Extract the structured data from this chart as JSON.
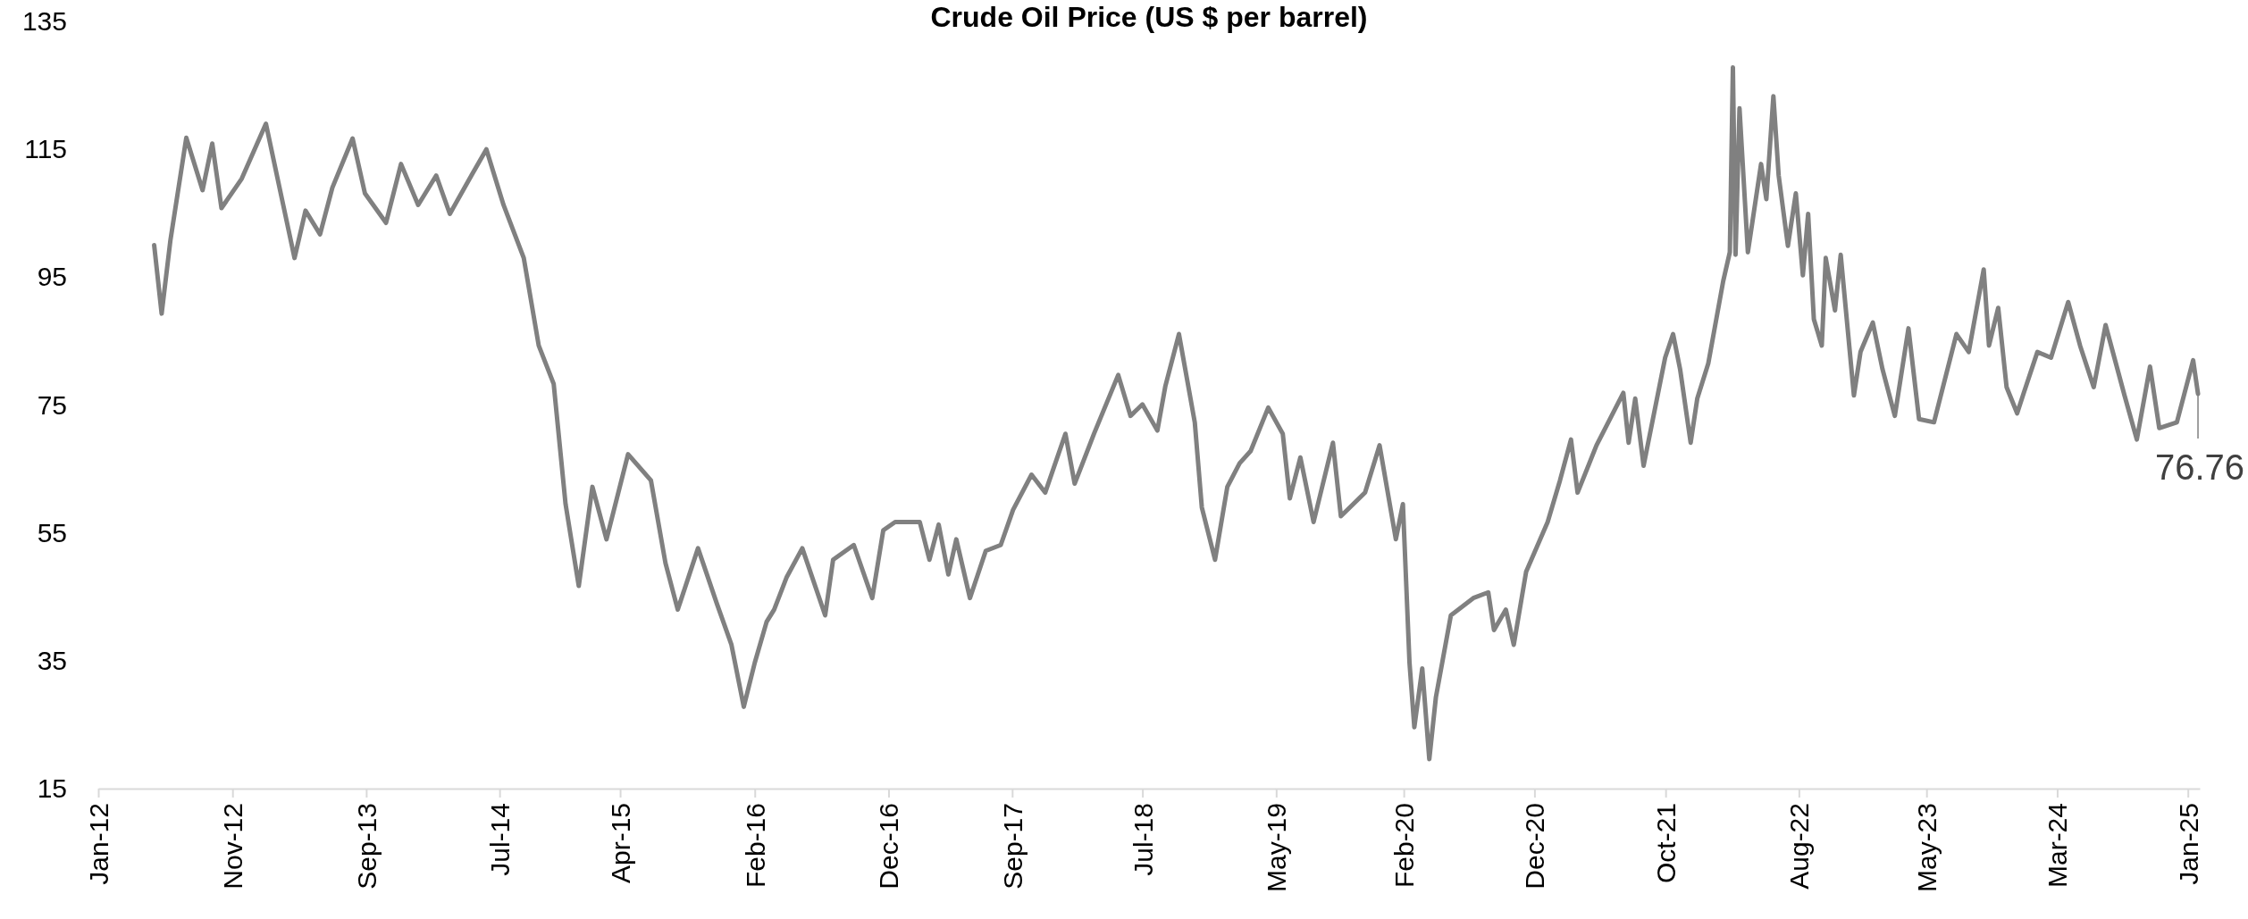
{
  "chart_data": {
    "type": "line",
    "title": "Crude Oil Price (US $ per barrel)",
    "x": [
      "2012-05-07",
      "2012-05-24",
      "2012-06-13",
      "2012-07-19",
      "2012-08-25",
      "2012-09-16",
      "2012-10-07",
      "2012-11-22",
      "2013-01-16",
      "2013-02-10",
      "2013-03-22",
      "2013-04-16",
      "2013-05-19",
      "2013-06-16",
      "2013-08-01",
      "2013-08-29",
      "2013-10-16",
      "2013-11-19",
      "2013-12-28",
      "2014-02-07",
      "2014-03-10",
      "2014-04-28",
      "2014-06-01",
      "2014-07-10",
      "2014-08-25",
      "2014-09-28",
      "2014-11-01",
      "2014-11-28",
      "2014-12-28",
      "2015-01-28",
      "2015-03-01",
      "2015-04-19",
      "2015-06-10",
      "2015-07-13",
      "2015-08-10",
      "2015-09-25",
      "2015-11-07",
      "2015-12-10",
      "2016-01-07",
      "2016-02-01",
      "2016-02-28",
      "2016-03-16",
      "2016-04-13",
      "2016-05-19",
      "2016-07-10",
      "2016-07-28",
      "2016-09-13",
      "2016-10-25",
      "2016-11-19",
      "2016-12-16",
      "2017-02-10",
      "2017-03-04",
      "2017-03-25",
      "2017-04-16",
      "2017-05-04",
      "2017-06-04",
      "2017-07-10",
      "2017-08-13",
      "2017-09-10",
      "2017-10-22",
      "2017-11-22",
      "2018-01-07",
      "2018-01-28",
      "2018-03-13",
      "2018-05-07",
      "2018-06-04",
      "2018-07-01",
      "2018-08-04",
      "2018-08-22",
      "2018-09-22",
      "2018-10-28",
      "2018-11-13",
      "2018-12-13",
      "2019-01-10",
      "2019-02-07",
      "2019-03-04",
      "2019-04-13",
      "2019-05-16",
      "2019-06-01",
      "2019-06-25",
      "2019-07-25",
      "2019-09-07",
      "2019-09-25",
      "2019-11-19",
      "2019-12-22",
      "2020-01-28",
      "2020-02-13",
      "2020-02-28",
      "2020-03-10",
      "2020-03-28",
      "2020-04-13",
      "2020-04-28",
      "2020-06-01",
      "2020-07-22",
      "2020-08-25",
      "2020-09-07",
      "2020-10-04",
      "2020-10-22",
      "2020-11-19",
      "2021-01-07",
      "2021-02-04",
      "2021-03-01",
      "2021-03-16",
      "2021-04-28",
      "2021-06-28",
      "2021-07-10",
      "2021-07-25",
      "2021-08-13",
      "2021-10-01",
      "2021-10-19",
      "2021-11-04",
      "2021-11-28",
      "2021-12-13",
      "2022-01-07",
      "2022-02-10",
      "2022-02-25",
      "2022-03-04",
      "2022-03-10",
      "2022-03-19",
      "2022-04-07",
      "2022-05-07",
      "2022-05-19",
      "2022-06-04",
      "2022-06-16",
      "2022-07-07",
      "2022-07-25",
      "2022-08-10",
      "2022-08-22",
      "2022-09-04",
      "2022-09-22",
      "2022-10-01",
      "2022-10-22",
      "2022-11-04",
      "2022-12-04",
      "2022-12-19",
      "2023-01-16",
      "2023-02-07",
      "2023-03-07",
      "2023-04-07",
      "2023-05-01",
      "2023-06-04",
      "2023-07-25",
      "2023-08-22",
      "2023-09-25",
      "2023-10-07",
      "2023-10-28",
      "2023-11-16",
      "2023-12-10",
      "2023-12-25",
      "2024-01-25",
      "2024-02-25",
      "2024-04-04",
      "2024-05-01",
      "2024-06-01",
      "2024-06-28",
      "2024-08-10",
      "2024-09-07",
      "2024-10-07",
      "2024-10-28",
      "2024-12-07",
      "2025-01-13",
      "2025-01-24"
    ],
    "series": [
      {
        "color": "#808080",
        "values": [
          100,
          89.3,
          100.8,
          116.8,
          108.6,
          115.9,
          105.8,
          110.4,
          119,
          110.9,
          98,
          105.4,
          101.7,
          109,
          116.7,
          108.1,
          103.5,
          112.7,
          106.3,
          110.9,
          104.9,
          110.9,
          115,
          106.3,
          98,
          84.3,
          78.3,
          59.5,
          46.7,
          62.2,
          54,
          67.3,
          63.2,
          50.3,
          43,
          52.6,
          43.9,
          37.5,
          27.8,
          34.7,
          41.1,
          43,
          48,
          52.6,
          42.1,
          50.8,
          53.1,
          44.8,
          55.4,
          56.7,
          56.7,
          50.8,
          56.3,
          48.5,
          54,
          44.8,
          52.2,
          53.1,
          58.6,
          64.1,
          61.3,
          70.5,
          62.7,
          70.5,
          79.7,
          73.3,
          75.1,
          71,
          77.9,
          86.1,
          72.3,
          59,
          50.8,
          62.2,
          65.9,
          67.8,
          74.6,
          70.5,
          60.4,
          66.8,
          56.7,
          69.1,
          57.6,
          61.3,
          68.7,
          54,
          59.5,
          34.7,
          24.6,
          33.8,
          19.6,
          29.3,
          42.1,
          44.8,
          45.7,
          39.8,
          43,
          37.5,
          48.9,
          56.7,
          63.2,
          69.6,
          61.3,
          68.7,
          76.9,
          69.1,
          76,
          65.5,
          82.4,
          86.1,
          80.6,
          69.1,
          76,
          81.5,
          94.4,
          98.9,
          127.8,
          98.5,
          121.4,
          98.9,
          112.7,
          107.2,
          123.3,
          110.9,
          99.9,
          108.1,
          95.3,
          104.9,
          88.4,
          84.3,
          98,
          89.8,
          98.5,
          76.5,
          83.3,
          87.9,
          80.6,
          73.3,
          87,
          72.8,
          72.3,
          86.1,
          83.3,
          96.2,
          84.3,
          90.2,
          77.8,
          73.7,
          76.9,
          83.3,
          82.4,
          91.1,
          84.3,
          77.8,
          87.5,
          76.5,
          69.6,
          81,
          71.4,
          72.3,
          82,
          76.76
        ]
      }
    ],
    "xlim": [
      "2012-01-01",
      "2025-01-28"
    ],
    "xticks": [
      {
        "value": "2012-01-01",
        "label": "Jan-12"
      },
      {
        "value": "2012-11-01",
        "label": "Nov-12"
      },
      {
        "value": "2013-09-01",
        "label": "Sep-13"
      },
      {
        "value": "2014-07-01",
        "label": "Jul-14"
      },
      {
        "value": "2015-04-01",
        "label": "Apr-15"
      },
      {
        "value": "2016-02-01",
        "label": "Feb-16"
      },
      {
        "value": "2016-12-01",
        "label": "Dec-16"
      },
      {
        "value": "2017-09-08",
        "label": "Sep-17"
      },
      {
        "value": "2018-07-01",
        "label": "Jul-18"
      },
      {
        "value": "2019-05-01",
        "label": "May-19"
      },
      {
        "value": "2020-02-15",
        "label": "Feb-20"
      },
      {
        "value": "2020-12-08",
        "label": "Dec-20"
      },
      {
        "value": "2021-10-02",
        "label": "Oct-21"
      },
      {
        "value": "2022-08-01",
        "label": "Aug-22"
      },
      {
        "value": "2023-05-18",
        "label": "May-23"
      },
      {
        "value": "2024-03-10",
        "label": "Mar-24"
      },
      {
        "value": "2025-01-01",
        "label": "Jan-25"
      }
    ],
    "ylim": [
      15,
      135
    ],
    "yticks": [
      15,
      35,
      55,
      75,
      95,
      115,
      135
    ],
    "marker": "none",
    "line_style": "solid",
    "annotations": [
      {
        "text": "76.76",
        "x": "2025-01-24",
        "y": 76.76
      }
    ]
  }
}
